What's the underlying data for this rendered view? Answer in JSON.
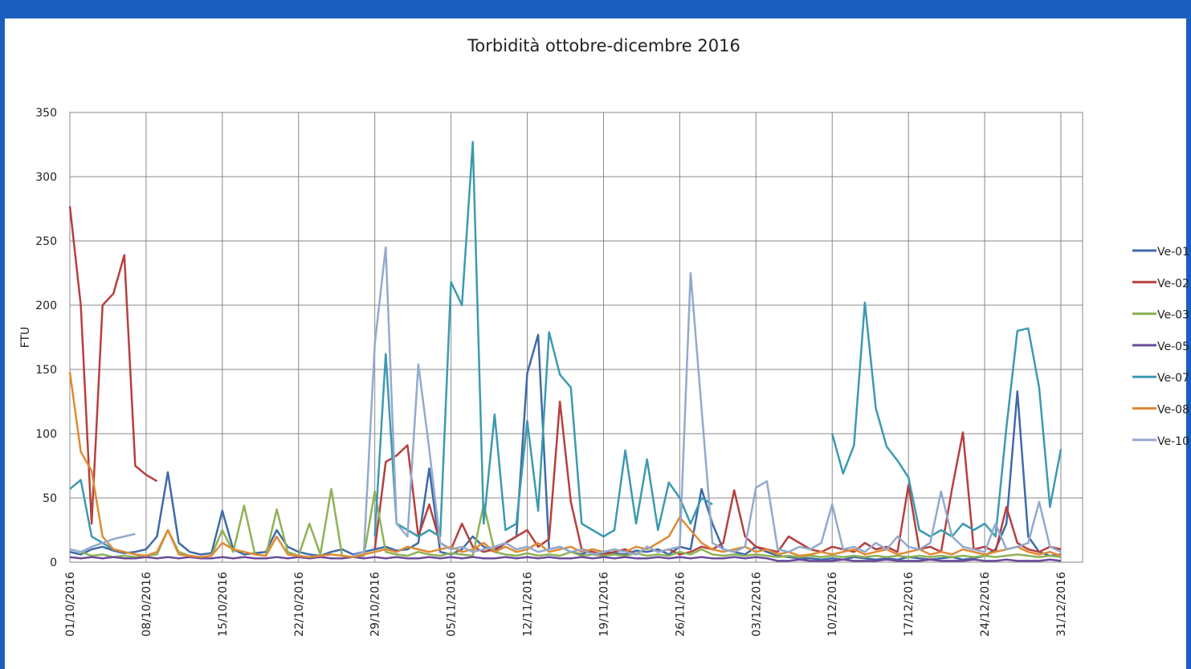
{
  "chart_data": {
    "type": "line",
    "title": "Torbidità ottobre-dicembre 2016",
    "y_label": "FTU",
    "categories": [
      "01/10/2016",
      null,
      null,
      null,
      null,
      null,
      null,
      "08/10/2016",
      null,
      null,
      null,
      null,
      null,
      null,
      "15/10/2016",
      null,
      null,
      null,
      null,
      null,
      null,
      "22/10/2016",
      null,
      null,
      null,
      null,
      null,
      null,
      "29/10/2016",
      null,
      null,
      null,
      null,
      null,
      null,
      "05/11/2016",
      null,
      null,
      null,
      null,
      null,
      null,
      "12/11/2016",
      null,
      null,
      null,
      null,
      null,
      null,
      "19/11/2016",
      null,
      null,
      null,
      null,
      null,
      null,
      "26/11/2016",
      null,
      null,
      null,
      null,
      null,
      null,
      "03/12/2016",
      null,
      null,
      null,
      null,
      null,
      null,
      "10/12/2016",
      null,
      null,
      null,
      null,
      null,
      null,
      "17/12/2016",
      null,
      null,
      null,
      null,
      null,
      null,
      "24/12/2016",
      null,
      null,
      null,
      null,
      null,
      null,
      "31/12/2016"
    ],
    "ylim": [
      0,
      350
    ],
    "yticks": [
      0,
      50,
      100,
      150,
      200,
      250,
      300,
      350
    ],
    "grid": true,
    "legend": "right",
    "series": [
      {
        "name": "Ve-01",
        "color": "#3f6aa8",
        "values": [
          8,
          6,
          10,
          12,
          9,
          7,
          8,
          10,
          20,
          70,
          15,
          8,
          6,
          7,
          40,
          10,
          6,
          7,
          8,
          25,
          12,
          8,
          6,
          5,
          8,
          10,
          6,
          8,
          10,
          12,
          9,
          10,
          15,
          73,
          8,
          6,
          10,
          20,
          12,
          8,
          15,
          20,
          147,
          177,
          10,
          12,
          8,
          6,
          10,
          8,
          7,
          6,
          9,
          8,
          10,
          6,
          12,
          10,
          57,
          30,
          10,
          8,
          6,
          12,
          8,
          5,
          4,
          3,
          3,
          2,
          3,
          2,
          4,
          3,
          2,
          3,
          2,
          4,
          3,
          2,
          3,
          4,
          2,
          3,
          5,
          10,
          30,
          133,
          20,
          8,
          5,
          6
        ]
      },
      {
        "name": "Ve-02",
        "color": "#b5403f",
        "values": [
          277,
          200,
          30,
          200,
          209,
          239,
          75,
          68,
          63,
          null,
          null,
          null,
          null,
          null,
          null,
          null,
          null,
          null,
          null,
          null,
          null,
          null,
          null,
          null,
          null,
          null,
          null,
          null,
          10,
          78,
          83,
          91,
          20,
          45,
          15,
          10,
          30,
          12,
          8,
          10,
          15,
          20,
          25,
          12,
          18,
          125,
          47,
          10,
          8,
          6,
          8,
          10,
          6,
          12,
          8,
          10,
          6,
          8,
          12,
          10,
          15,
          56,
          20,
          12,
          10,
          8,
          20,
          15,
          10,
          8,
          12,
          10,
          8,
          15,
          10,
          12,
          8,
          60,
          10,
          12,
          8,
          57,
          101,
          10,
          12,
          8,
          43,
          15,
          10,
          8,
          12,
          10
        ]
      },
      {
        "name": "Ve-03",
        "color": "#8db255",
        "values": [
          10,
          8,
          5,
          6,
          4,
          5,
          4,
          5,
          6,
          25,
          8,
          5,
          4,
          5,
          25,
          8,
          44,
          6,
          5,
          41,
          8,
          5,
          30,
          6,
          57,
          5,
          4,
          5,
          55,
          8,
          6,
          5,
          8,
          6,
          5,
          7,
          6,
          5,
          45,
          8,
          6,
          5,
          7,
          5,
          6,
          5,
          8,
          5,
          6,
          5,
          6,
          5,
          7,
          5,
          6,
          5,
          8,
          6,
          10,
          6,
          5,
          6,
          5,
          6,
          5,
          4,
          5,
          4,
          5,
          4,
          5,
          4,
          5,
          4,
          5,
          4,
          5,
          4,
          5,
          4,
          5,
          4,
          5,
          4,
          5,
          4,
          5,
          6,
          5,
          4,
          5,
          4
        ]
      },
      {
        "name": "Ve-05",
        "color": "#6b4c9a",
        "values": [
          4,
          3,
          4,
          3,
          4,
          3,
          3,
          4,
          3,
          4,
          3,
          4,
          3,
          3,
          4,
          3,
          4,
          3,
          3,
          4,
          3,
          4,
          3,
          4,
          3,
          3,
          4,
          3,
          4,
          3,
          4,
          3,
          3,
          4,
          3,
          4,
          3,
          4,
          3,
          3,
          4,
          3,
          4,
          3,
          4,
          3,
          3,
          4,
          3,
          4,
          3,
          4,
          3,
          3,
          4,
          3,
          4,
          3,
          4,
          3,
          3,
          4,
          3,
          4,
          3,
          1,
          1,
          2,
          1,
          1,
          1,
          2,
          1,
          1,
          1,
          2,
          1,
          1,
          1,
          2,
          1,
          1,
          1,
          2,
          1,
          1,
          2,
          1,
          1,
          1,
          2,
          1
        ]
      },
      {
        "name": "Ve-07",
        "color": "#3c9ab0",
        "values": [
          57,
          64,
          20,
          15,
          10,
          8,
          null,
          null,
          null,
          null,
          null,
          null,
          null,
          null,
          null,
          null,
          null,
          null,
          null,
          null,
          null,
          null,
          null,
          null,
          null,
          null,
          null,
          null,
          20,
          162,
          30,
          25,
          20,
          25,
          20,
          218,
          200,
          327,
          30,
          115,
          25,
          30,
          110,
          40,
          179,
          146,
          136,
          30,
          25,
          20,
          25,
          87,
          30,
          80,
          25,
          62,
          50,
          30,
          50,
          45,
          null,
          null,
          null,
          null,
          null,
          null,
          null,
          null,
          null,
          null,
          100,
          69,
          91,
          202,
          120,
          90,
          79,
          66,
          25,
          20,
          25,
          20,
          30,
          25,
          30,
          20,
          105,
          180,
          182,
          136,
          43,
          88
        ]
      },
      {
        "name": "Ve-08",
        "color": "#e08a35",
        "values": [
          148,
          86,
          71,
          20,
          10,
          8,
          6,
          5,
          8,
          25,
          6,
          5,
          4,
          5,
          15,
          10,
          8,
          6,
          5,
          20,
          6,
          5,
          4,
          5,
          6,
          5,
          4,
          6,
          8,
          10,
          8,
          12,
          10,
          8,
          10,
          12,
          8,
          10,
          15,
          8,
          12,
          8,
          10,
          15,
          8,
          10,
          12,
          8,
          10,
          8,
          10,
          8,
          12,
          10,
          15,
          20,
          35,
          25,
          15,
          10,
          8,
          10,
          12,
          8,
          10,
          6,
          8,
          5,
          6,
          8,
          6,
          8,
          10,
          6,
          8,
          10,
          6,
          8,
          10,
          6,
          8,
          6,
          10,
          8,
          6,
          8,
          10,
          12,
          8,
          6,
          8,
          5
        ]
      },
      {
        "name": "Ve-10",
        "color": "#93a9cf",
        "values": [
          10,
          8,
          12,
          15,
          18,
          20,
          22,
          null,
          null,
          null,
          null,
          null,
          null,
          null,
          null,
          null,
          null,
          null,
          null,
          null,
          null,
          null,
          null,
          null,
          null,
          null,
          5,
          8,
          170,
          245,
          30,
          20,
          154,
          88,
          15,
          10,
          12,
          8,
          10,
          12,
          15,
          10,
          12,
          8,
          10,
          12,
          8,
          10,
          6,
          8,
          10,
          8,
          6,
          12,
          8,
          10,
          12,
          225,
          120,
          15,
          10,
          8,
          12,
          58,
          63,
          10,
          8,
          12,
          10,
          15,
          45,
          10,
          12,
          8,
          15,
          10,
          20,
          12,
          10,
          15,
          55,
          20,
          12,
          10,
          8,
          30,
          10,
          12,
          15,
          47,
          12,
          8
        ]
      }
    ]
  }
}
